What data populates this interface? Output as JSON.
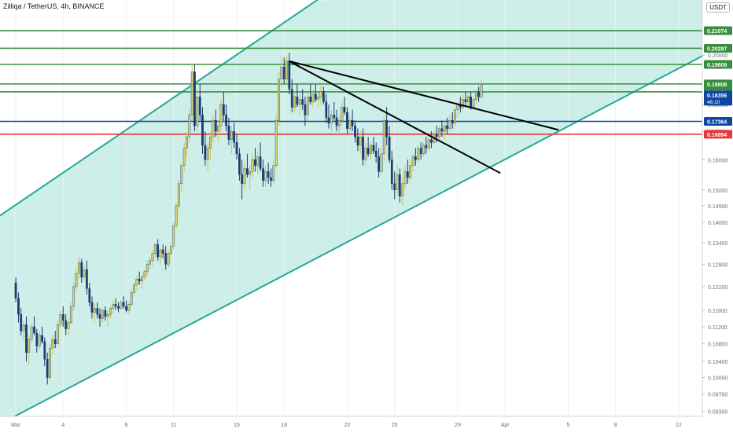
{
  "header": {
    "title": "Zilliqa / TetherUS, 4h, BINANCE",
    "currency": "USDT"
  },
  "chart_data": {
    "type": "candlestick",
    "symbol": "Zilliqa / TetherUS",
    "timeframe": "4h",
    "exchange": "BINANCE",
    "y_scale": "log",
    "ylim": [
      0.0925,
      0.225
    ],
    "x_tick_labels": [
      {
        "day": 0,
        "label": "Mar"
      },
      {
        "day": 3,
        "label": "4"
      },
      {
        "day": 7,
        "label": "8"
      },
      {
        "day": 10,
        "label": "11"
      },
      {
        "day": 14,
        "label": "15"
      },
      {
        "day": 17,
        "label": "18"
      },
      {
        "day": 21,
        "label": "22"
      },
      {
        "day": 24,
        "label": "25"
      },
      {
        "day": 28,
        "label": "29"
      },
      {
        "day": 31,
        "label": "Apr"
      },
      {
        "day": 35,
        "label": "5"
      },
      {
        "day": 38,
        "label": "8"
      },
      {
        "day": 42,
        "label": "12"
      }
    ],
    "y_tick_labels": [
      "0.20000",
      "0.18000",
      "0.17000",
      "0.16000",
      "0.15000",
      "0.14500",
      "0.14000",
      "0.13400",
      "0.12800",
      "0.12200",
      "0.11600",
      "0.11200",
      "0.10800",
      "0.10400",
      "0.10050",
      "0.09700",
      "0.09350"
    ],
    "levels": [
      {
        "value": 0.21074,
        "label": "0.21074",
        "color": "#388e3c"
      },
      {
        "value": 0.20297,
        "label": "0.20297",
        "color": "#388e3c"
      },
      {
        "value": 0.19609,
        "label": "0.19609",
        "color": "#388e3c"
      },
      {
        "value": 0.18808,
        "label": "0.18808",
        "color": "#388e3c"
      },
      {
        "value": 0.18492,
        "label": "0.18492",
        "color": "#388e3c"
      },
      {
        "value": 0.17364,
        "label": "0.17364",
        "color": "#0d47a1"
      },
      {
        "value": 0.16894,
        "label": "0.16894",
        "color": "#e53935"
      }
    ],
    "last_price": {
      "value": 0.18356,
      "label": "0.18356",
      "countdown": "46:10",
      "color": "#0d47a1"
    },
    "channel": {
      "color": "#26a69a",
      "fill": "#cdeee9",
      "lower_line": [
        [
          -1.0,
          0.091
        ],
        [
          45.0,
          0.205
        ]
      ],
      "upper_line": [
        [
          -1.0,
          0.142
        ],
        [
          21.0,
          0.235
        ]
      ]
    },
    "trend_lines": [
      {
        "color": "#000000",
        "points": [
          [
            17.3,
            0.1975
          ],
          [
            34.4,
            0.1705
          ]
        ]
      },
      {
        "color": "#000000",
        "points": [
          [
            17.3,
            0.1975
          ],
          [
            30.7,
            0.1555
          ]
        ]
      }
    ],
    "candles": [
      [
        0.0,
        0.123,
        0.1245,
        0.118,
        0.119
      ],
      [
        0.17,
        0.119,
        0.1205,
        0.113,
        0.115
      ],
      [
        0.33,
        0.115,
        0.1165,
        0.11,
        0.111
      ],
      [
        0.5,
        0.111,
        0.1135,
        0.1085,
        0.1125
      ],
      [
        0.67,
        0.1125,
        0.1145,
        0.104,
        0.106
      ],
      [
        0.83,
        0.106,
        0.11,
        0.103,
        0.109
      ],
      [
        1.0,
        0.109,
        0.113,
        0.108,
        0.112
      ],
      [
        1.17,
        0.112,
        0.1145,
        0.11,
        0.1105
      ],
      [
        1.33,
        0.1105,
        0.1115,
        0.106,
        0.1075
      ],
      [
        1.5,
        0.1075,
        0.111,
        0.1065,
        0.11
      ],
      [
        1.67,
        0.11,
        0.112,
        0.108,
        0.1085
      ],
      [
        1.83,
        0.1085,
        0.1095,
        0.103,
        0.1045
      ],
      [
        2.0,
        0.1045,
        0.106,
        0.099,
        0.1005
      ],
      [
        2.17,
        0.1005,
        0.108,
        0.1,
        0.107
      ],
      [
        2.33,
        0.107,
        0.11,
        0.1055,
        0.109
      ],
      [
        2.5,
        0.109,
        0.111,
        0.107,
        0.108
      ],
      [
        2.67,
        0.108,
        0.1135,
        0.1075,
        0.1125
      ],
      [
        2.83,
        0.1125,
        0.116,
        0.1115,
        0.115
      ],
      [
        3.0,
        0.115,
        0.117,
        0.112,
        0.1135
      ],
      [
        3.17,
        0.1135,
        0.115,
        0.11,
        0.1115
      ],
      [
        3.33,
        0.1115,
        0.114,
        0.11,
        0.113
      ],
      [
        3.5,
        0.113,
        0.118,
        0.1125,
        0.117
      ],
      [
        3.67,
        0.117,
        0.123,
        0.116,
        0.122
      ],
      [
        3.83,
        0.122,
        0.127,
        0.121,
        0.1255
      ],
      [
        4.0,
        0.1255,
        0.13,
        0.124,
        0.1285
      ],
      [
        4.17,
        0.1285,
        0.1295,
        0.123,
        0.1245
      ],
      [
        4.33,
        0.1245,
        0.1275,
        0.1235,
        0.1265
      ],
      [
        4.5,
        0.1265,
        0.129,
        0.12,
        0.1215
      ],
      [
        4.67,
        0.1215,
        0.123,
        0.117,
        0.118
      ],
      [
        4.83,
        0.118,
        0.1195,
        0.114,
        0.1155
      ],
      [
        5.0,
        0.1155,
        0.1175,
        0.113,
        0.1165
      ],
      [
        5.17,
        0.1165,
        0.118,
        0.114,
        0.115
      ],
      [
        5.33,
        0.115,
        0.1165,
        0.112,
        0.114
      ],
      [
        5.5,
        0.114,
        0.1165,
        0.113,
        0.116
      ],
      [
        5.67,
        0.116,
        0.117,
        0.1135,
        0.1145
      ],
      [
        5.83,
        0.1145,
        0.116,
        0.112,
        0.115
      ],
      [
        6.0,
        0.115,
        0.117,
        0.114,
        0.1165
      ],
      [
        6.17,
        0.1165,
        0.1185,
        0.115,
        0.1175
      ],
      [
        6.33,
        0.1175,
        0.119,
        0.116,
        0.117
      ],
      [
        6.5,
        0.117,
        0.118,
        0.1155,
        0.1165
      ],
      [
        6.67,
        0.1165,
        0.1185,
        0.116,
        0.118
      ],
      [
        6.83,
        0.118,
        0.1195,
        0.1165,
        0.117
      ],
      [
        7.0,
        0.117,
        0.1185,
        0.1155,
        0.116
      ],
      [
        7.17,
        0.116,
        0.118,
        0.115,
        0.1175
      ],
      [
        7.33,
        0.1175,
        0.1215,
        0.117,
        0.1205
      ],
      [
        7.5,
        0.1205,
        0.123,
        0.1195,
        0.1225
      ],
      [
        7.67,
        0.1225,
        0.125,
        0.121,
        0.124
      ],
      [
        7.83,
        0.124,
        0.126,
        0.1225,
        0.1235
      ],
      [
        8.0,
        0.1235,
        0.125,
        0.1215,
        0.1245
      ],
      [
        8.17,
        0.1245,
        0.1265,
        0.1235,
        0.126
      ],
      [
        8.33,
        0.126,
        0.129,
        0.125,
        0.128
      ],
      [
        8.5,
        0.128,
        0.13,
        0.1265,
        0.129
      ],
      [
        8.67,
        0.129,
        0.132,
        0.1275,
        0.131
      ],
      [
        8.83,
        0.131,
        0.134,
        0.13,
        0.1335
      ],
      [
        9.0,
        0.1335,
        0.135,
        0.129,
        0.13
      ],
      [
        9.17,
        0.13,
        0.1325,
        0.128,
        0.132
      ],
      [
        9.33,
        0.132,
        0.1335,
        0.1295,
        0.131
      ],
      [
        9.5,
        0.131,
        0.133,
        0.1265,
        0.128
      ],
      [
        9.67,
        0.128,
        0.132,
        0.127,
        0.131
      ],
      [
        9.83,
        0.131,
        0.134,
        0.13,
        0.133
      ],
      [
        10.0,
        0.133,
        0.14,
        0.132,
        0.139
      ],
      [
        10.17,
        0.139,
        0.146,
        0.138,
        0.145
      ],
      [
        10.33,
        0.145,
        0.153,
        0.144,
        0.152
      ],
      [
        10.5,
        0.152,
        0.159,
        0.149,
        0.158
      ],
      [
        10.67,
        0.158,
        0.166,
        0.156,
        0.164
      ],
      [
        10.83,
        0.164,
        0.17,
        0.161,
        0.168
      ],
      [
        11.0,
        0.168,
        0.178,
        0.166,
        0.176
      ],
      [
        11.17,
        0.176,
        0.196,
        0.174,
        0.193
      ],
      [
        11.33,
        0.193,
        0.196,
        0.17,
        0.172
      ],
      [
        11.5,
        0.172,
        0.186,
        0.17,
        0.183
      ],
      [
        11.67,
        0.183,
        0.188,
        0.174,
        0.176
      ],
      [
        11.83,
        0.176,
        0.179,
        0.162,
        0.165
      ],
      [
        12.0,
        0.165,
        0.17,
        0.158,
        0.16
      ],
      [
        12.17,
        0.16,
        0.166,
        0.156,
        0.164
      ],
      [
        12.33,
        0.164,
        0.17,
        0.16,
        0.168
      ],
      [
        12.5,
        0.168,
        0.176,
        0.166,
        0.174
      ],
      [
        12.67,
        0.174,
        0.178,
        0.168,
        0.17
      ],
      [
        12.83,
        0.17,
        0.174,
        0.166,
        0.172
      ],
      [
        13.0,
        0.172,
        0.182,
        0.17,
        0.18
      ],
      [
        13.17,
        0.18,
        0.185,
        0.174,
        0.176
      ],
      [
        13.33,
        0.176,
        0.18,
        0.17,
        0.172
      ],
      [
        13.5,
        0.172,
        0.175,
        0.165,
        0.167
      ],
      [
        13.67,
        0.167,
        0.172,
        0.162,
        0.17
      ],
      [
        13.83,
        0.17,
        0.173,
        0.164,
        0.166
      ],
      [
        14.0,
        0.166,
        0.169,
        0.16,
        0.162
      ],
      [
        14.17,
        0.162,
        0.164,
        0.153,
        0.155
      ],
      [
        14.33,
        0.155,
        0.16,
        0.147,
        0.152
      ],
      [
        14.5,
        0.152,
        0.159,
        0.15,
        0.157
      ],
      [
        14.67,
        0.157,
        0.162,
        0.154,
        0.155
      ],
      [
        14.83,
        0.155,
        0.158,
        0.15,
        0.156
      ],
      [
        15.0,
        0.156,
        0.162,
        0.154,
        0.16
      ],
      [
        15.17,
        0.16,
        0.164,
        0.156,
        0.158
      ],
      [
        15.33,
        0.158,
        0.163,
        0.155,
        0.161
      ],
      [
        15.5,
        0.161,
        0.166,
        0.156,
        0.157
      ],
      [
        15.67,
        0.157,
        0.16,
        0.151,
        0.153
      ],
      [
        15.83,
        0.153,
        0.158,
        0.151,
        0.156
      ],
      [
        16.0,
        0.156,
        0.159,
        0.152,
        0.154
      ],
      [
        16.17,
        0.154,
        0.157,
        0.151,
        0.153
      ],
      [
        16.33,
        0.153,
        0.16,
        0.152,
        0.158
      ],
      [
        16.5,
        0.158,
        0.176,
        0.157,
        0.174
      ],
      [
        16.67,
        0.174,
        0.193,
        0.172,
        0.19
      ],
      [
        16.83,
        0.19,
        0.199,
        0.187,
        0.195
      ],
      [
        17.0,
        0.195,
        0.199,
        0.188,
        0.19
      ],
      [
        17.17,
        0.19,
        0.2,
        0.188,
        0.1975
      ],
      [
        17.33,
        0.1975,
        0.201,
        0.184,
        0.186
      ],
      [
        17.5,
        0.186,
        0.19,
        0.177,
        0.179
      ],
      [
        17.67,
        0.179,
        0.185,
        0.177,
        0.183
      ],
      [
        17.83,
        0.183,
        0.188,
        0.179,
        0.18
      ],
      [
        18.0,
        0.18,
        0.184,
        0.176,
        0.182
      ],
      [
        18.17,
        0.182,
        0.186,
        0.178,
        0.18
      ],
      [
        18.33,
        0.18,
        0.183,
        0.172,
        0.176
      ],
      [
        18.5,
        0.176,
        0.185,
        0.174,
        0.183
      ],
      [
        18.67,
        0.183,
        0.188,
        0.18,
        0.181
      ],
      [
        18.83,
        0.181,
        0.186,
        0.179,
        0.184
      ],
      [
        19.0,
        0.184,
        0.188,
        0.181,
        0.182
      ],
      [
        19.17,
        0.182,
        0.185,
        0.179,
        0.183
      ],
      [
        19.33,
        0.183,
        0.188,
        0.18,
        0.185
      ],
      [
        19.5,
        0.185,
        0.187,
        0.18,
        0.181
      ],
      [
        19.67,
        0.181,
        0.184,
        0.173,
        0.175
      ],
      [
        19.83,
        0.175,
        0.18,
        0.171,
        0.173
      ],
      [
        20.0,
        0.173,
        0.178,
        0.17,
        0.176
      ],
      [
        20.17,
        0.176,
        0.181,
        0.174,
        0.175
      ],
      [
        20.33,
        0.175,
        0.178,
        0.17,
        0.172
      ],
      [
        20.5,
        0.172,
        0.176,
        0.169,
        0.174
      ],
      [
        20.67,
        0.174,
        0.181,
        0.172,
        0.179
      ],
      [
        20.83,
        0.179,
        0.183,
        0.176,
        0.177
      ],
      [
        21.0,
        0.177,
        0.179,
        0.169,
        0.171
      ],
      [
        21.17,
        0.171,
        0.176,
        0.169,
        0.174
      ],
      [
        21.33,
        0.174,
        0.178,
        0.17,
        0.172
      ],
      [
        21.5,
        0.172,
        0.174,
        0.166,
        0.168
      ],
      [
        21.67,
        0.168,
        0.171,
        0.163,
        0.165
      ],
      [
        21.83,
        0.165,
        0.17,
        0.162,
        0.168
      ],
      [
        22.0,
        0.168,
        0.171,
        0.158,
        0.16
      ],
      [
        22.17,
        0.16,
        0.166,
        0.158,
        0.164
      ],
      [
        22.33,
        0.164,
        0.168,
        0.161,
        0.162
      ],
      [
        22.5,
        0.162,
        0.166,
        0.16,
        0.165
      ],
      [
        22.67,
        0.165,
        0.168,
        0.162,
        0.163
      ],
      [
        22.83,
        0.163,
        0.166,
        0.159,
        0.161
      ],
      [
        23.0,
        0.161,
        0.164,
        0.154,
        0.156
      ],
      [
        23.17,
        0.156,
        0.164,
        0.155,
        0.162
      ],
      [
        23.33,
        0.162,
        0.176,
        0.16,
        0.174
      ],
      [
        23.5,
        0.174,
        0.179,
        0.165,
        0.168
      ],
      [
        23.67,
        0.168,
        0.172,
        0.159,
        0.16
      ],
      [
        23.83,
        0.16,
        0.163,
        0.15,
        0.152
      ],
      [
        24.0,
        0.152,
        0.156,
        0.147,
        0.15
      ],
      [
        24.17,
        0.15,
        0.158,
        0.148,
        0.155
      ],
      [
        24.33,
        0.155,
        0.157,
        0.146,
        0.148
      ],
      [
        24.5,
        0.148,
        0.154,
        0.145,
        0.152
      ],
      [
        24.67,
        0.152,
        0.158,
        0.15,
        0.156
      ],
      [
        24.83,
        0.156,
        0.16,
        0.152,
        0.154
      ],
      [
        25.0,
        0.154,
        0.16,
        0.153,
        0.158
      ],
      [
        25.17,
        0.158,
        0.162,
        0.156,
        0.161
      ],
      [
        25.33,
        0.161,
        0.164,
        0.158,
        0.16
      ],
      [
        25.5,
        0.16,
        0.165,
        0.159,
        0.164
      ],
      [
        25.67,
        0.164,
        0.166,
        0.16,
        0.162
      ],
      [
        25.83,
        0.162,
        0.166,
        0.161,
        0.165
      ],
      [
        26.0,
        0.165,
        0.168,
        0.162,
        0.164
      ],
      [
        26.17,
        0.164,
        0.169,
        0.163,
        0.167
      ],
      [
        26.33,
        0.167,
        0.17,
        0.164,
        0.166
      ],
      [
        26.5,
        0.166,
        0.17,
        0.165,
        0.169
      ],
      [
        26.67,
        0.169,
        0.172,
        0.166,
        0.168
      ],
      [
        26.83,
        0.168,
        0.172,
        0.167,
        0.171
      ],
      [
        27.0,
        0.171,
        0.174,
        0.168,
        0.17
      ],
      [
        27.17,
        0.17,
        0.173,
        0.167,
        0.172
      ],
      [
        27.33,
        0.172,
        0.175,
        0.169,
        0.171
      ],
      [
        27.5,
        0.171,
        0.176,
        0.17,
        0.174
      ],
      [
        27.67,
        0.174,
        0.177,
        0.171,
        0.173
      ],
      [
        27.83,
        0.173,
        0.179,
        0.172,
        0.178
      ],
      [
        28.0,
        0.178,
        0.181,
        0.175,
        0.18
      ],
      [
        28.17,
        0.18,
        0.183,
        0.177,
        0.179
      ],
      [
        28.33,
        0.179,
        0.184,
        0.178,
        0.182
      ],
      [
        28.5,
        0.182,
        0.185,
        0.179,
        0.181
      ],
      [
        28.67,
        0.181,
        0.184,
        0.179,
        0.183
      ],
      [
        28.83,
        0.183,
        0.185,
        0.178,
        0.179
      ],
      [
        29.0,
        0.179,
        0.183,
        0.178,
        0.182
      ],
      [
        29.17,
        0.182,
        0.186,
        0.18,
        0.185
      ],
      [
        29.33,
        0.185,
        0.187,
        0.181,
        0.183
      ],
      [
        29.5,
        0.183,
        0.19,
        0.182,
        0.188
      ]
    ]
  }
}
